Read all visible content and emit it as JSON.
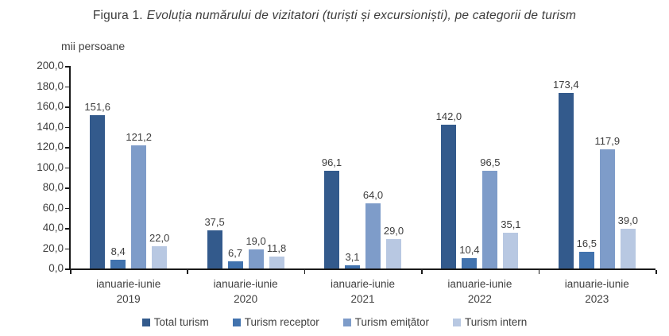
{
  "figure": {
    "title_prefix": "Figura 1.",
    "title_italic": "Evoluția numărului de vizitatori (turiști și excursioniști), pe categorii de turism"
  },
  "chart_data": {
    "type": "bar",
    "title": "Figura 1. Evoluția numărului de vizitatori (turiști și excursioniști), pe categorii de turism",
    "y_axis_title": "mii persoane",
    "xlabel": "",
    "ylabel": "mii persoane",
    "ylim": [
      0,
      200
    ],
    "y_tick_step": 20,
    "y_tick_labels_top_down": [
      "200,0",
      "180,0",
      "160,0",
      "140,0",
      "120,0",
      "100,0",
      "80,0",
      "60,0",
      "40,0",
      "20,0",
      "0,0"
    ],
    "grid": false,
    "legend_position": "bottom",
    "categories": [
      {
        "line1": "ianuarie-iunie",
        "line2": "2019"
      },
      {
        "line1": "ianuarie-iunie",
        "line2": "2020"
      },
      {
        "line1": "ianuarie-iunie",
        "line2": "2021"
      },
      {
        "line1": "ianuarie-iunie",
        "line2": "2022"
      },
      {
        "line1": "ianuarie-iunie",
        "line2": "2023"
      }
    ],
    "series": [
      {
        "name": "Total turism",
        "color": "#335a8c",
        "values": [
          151.6,
          37.5,
          96.1,
          142.0,
          173.4
        ],
        "labels": [
          "151,6",
          "37,5",
          "96,1",
          "142,0",
          "173,4"
        ]
      },
      {
        "name": "Turism receptor",
        "color": "#4273ae",
        "values": [
          8.4,
          6.7,
          3.1,
          10.4,
          16.5
        ],
        "labels": [
          "8,4",
          "6,7",
          "3,1",
          "10,4",
          "16,5"
        ]
      },
      {
        "name": "Turism emițător",
        "color": "#7e9cc9",
        "values": [
          121.2,
          19.0,
          64.0,
          96.5,
          117.9
        ],
        "labels": [
          "121,2",
          "19,0",
          "64,0",
          "96,5",
          "117,9"
        ]
      },
      {
        "name": "Turism intern",
        "color": "#b8c8e2",
        "values": [
          22.0,
          11.8,
          29.0,
          35.1,
          39.0
        ],
        "labels": [
          "22,0",
          "11,8",
          "29,0",
          "35,1",
          "39,0"
        ]
      }
    ],
    "axis_color": "#1a1a1a",
    "text_color": "#404040"
  }
}
